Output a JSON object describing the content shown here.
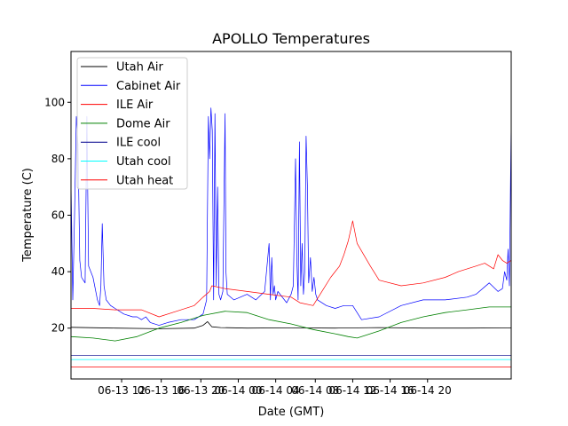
{
  "chart_data": {
    "type": "line",
    "title": "APOLLO Temperatures",
    "xlabel": "Date (GMT)",
    "ylabel": "Temperature (C)",
    "xlim": [
      0,
      100
    ],
    "ylim": [
      2,
      118
    ],
    "yticks": [
      20,
      40,
      60,
      80,
      100
    ],
    "xtick_labels": [
      {
        "x": 11.5,
        "label": "06-13 12"
      },
      {
        "x": 20.5,
        "label": "06-13 16"
      },
      {
        "x": 29.5,
        "label": "06-13 20"
      },
      {
        "x": 38.0,
        "label": "06-14 00"
      },
      {
        "x": 46.5,
        "label": "06-14 04"
      },
      {
        "x": 55.5,
        "label": "06-14 08"
      },
      {
        "x": 64.0,
        "label": "06-14 12"
      },
      {
        "x": 72.5,
        "label": "06-14 16"
      },
      {
        "x": 81.0,
        "label": "06-14 20"
      }
    ],
    "legend_position": "top-left",
    "series": [
      {
        "name": "Utah Air",
        "color": "#000000",
        "width": 0.8,
        "x": [
          0,
          10,
          20,
          28,
          30,
          31,
          32,
          34,
          40,
          50,
          60,
          70,
          80,
          90,
          100
        ],
        "y": [
          20.3,
          20.0,
          19.8,
          20.0,
          21.0,
          22.3,
          20.5,
          20.2,
          20.0,
          20.1,
          20.0,
          20.2,
          20.0,
          20.0,
          20.1
        ]
      },
      {
        "name": "Cabinet Air",
        "color": "#0000ff",
        "width": 0.7,
        "x": [
          0,
          0.4,
          0.8,
          1.2,
          1.6,
          2.0,
          2.4,
          2.8,
          3.2,
          3.6,
          4.0,
          5.0,
          6.0,
          6.5,
          6.8,
          7.1,
          7.5,
          8.0,
          9.0,
          10.0,
          12.0,
          14.0,
          15.0,
          16.0,
          17.0,
          18.0,
          20.0,
          22.0,
          25.0,
          28.0,
          30.0,
          30.8,
          31.2,
          31.5,
          31.8,
          32.1,
          32.4,
          32.7,
          33.0,
          33.3,
          33.6,
          34.0,
          34.5,
          35.0,
          35.2,
          35.5,
          37.0,
          40.0,
          42.0,
          44.0,
          45.0,
          45.3,
          45.6,
          45.9,
          46.2,
          46.5,
          47.0,
          49.0,
          50.0,
          50.5,
          51.0,
          51.3,
          51.6,
          51.9,
          52.2,
          52.5,
          52.8,
          53.1,
          53.4,
          53.7,
          54.0,
          54.4,
          54.8,
          55.2,
          55.6,
          56.0,
          58.0,
          60.0,
          62.0,
          64.0,
          66.0,
          70.0,
          75.0,
          80.0,
          85.0,
          90.0,
          92.0,
          95.0,
          97.0,
          98.0,
          98.5,
          99.0,
          99.3,
          99.6,
          100.0
        ],
        "y": [
          72,
          30,
          60,
          95,
          85,
          44,
          38,
          37,
          36,
          95,
          42,
          38,
          30,
          28,
          35,
          57,
          35,
          30,
          28,
          27,
          25,
          24,
          24,
          23,
          24,
          22,
          21,
          22,
          23,
          23,
          25,
          30,
          95,
          80,
          98,
          90,
          30,
          96,
          35,
          70,
          32,
          30,
          33,
          96,
          40,
          32,
          30,
          32,
          30,
          33,
          50,
          30,
          45,
          32,
          35,
          30,
          33,
          29,
          32,
          35,
          80,
          45,
          30,
          86,
          35,
          50,
          32,
          40,
          88,
          70,
          36,
          45,
          33,
          38,
          32,
          30,
          28,
          27,
          28,
          28,
          23,
          24,
          28,
          30,
          30,
          31,
          32,
          36,
          33,
          34,
          40,
          37,
          48,
          35,
          94
        ]
      },
      {
        "name": "ILE Air",
        "color": "#ff0000",
        "width": 0.7,
        "x": [
          0,
          5,
          10,
          16,
          20,
          24,
          28,
          30,
          31.5,
          32,
          35,
          40,
          45,
          50,
          52,
          55,
          57,
          59,
          60,
          61,
          62,
          63,
          64,
          65,
          68,
          70,
          75,
          80,
          85,
          88,
          90,
          92,
          94,
          96,
          97,
          98,
          99,
          100
        ],
        "y": [
          27,
          27,
          26.5,
          26.5,
          24,
          26,
          28,
          31,
          33,
          35,
          34,
          33,
          32,
          31,
          29,
          28,
          33,
          38,
          40,
          42,
          46,
          51,
          58,
          50,
          42,
          37,
          35,
          36,
          38,
          40,
          41,
          42,
          43,
          41,
          46,
          44,
          43,
          44
        ]
      },
      {
        "name": "Dome Air",
        "color": "#008000",
        "width": 0.8,
        "x": [
          0,
          5,
          10,
          15,
          20,
          25,
          30,
          35,
          40,
          45,
          50,
          55,
          60,
          63,
          65,
          70,
          75,
          80,
          85,
          90,
          95,
          100
        ],
        "y": [
          17,
          16.5,
          15.5,
          17,
          20,
          22,
          24.5,
          26,
          25.5,
          23,
          21.5,
          19.5,
          18,
          17,
          16.5,
          19,
          22,
          24,
          25.5,
          26.5,
          27.5,
          27.5
        ]
      },
      {
        "name": "ILE cool",
        "color": "#00008b",
        "width": 0.7,
        "x": [
          0,
          100
        ],
        "y": [
          10.4,
          10.4
        ]
      },
      {
        "name": "Utah cool",
        "color": "#00ffff",
        "width": 0.8,
        "x": [
          0,
          100
        ],
        "y": [
          8.9,
          8.9
        ]
      },
      {
        "name": "Utah heat",
        "color": "#ff0000",
        "width": 0.7,
        "x": [
          0,
          100
        ],
        "y": [
          6.2,
          6.2
        ]
      }
    ]
  }
}
